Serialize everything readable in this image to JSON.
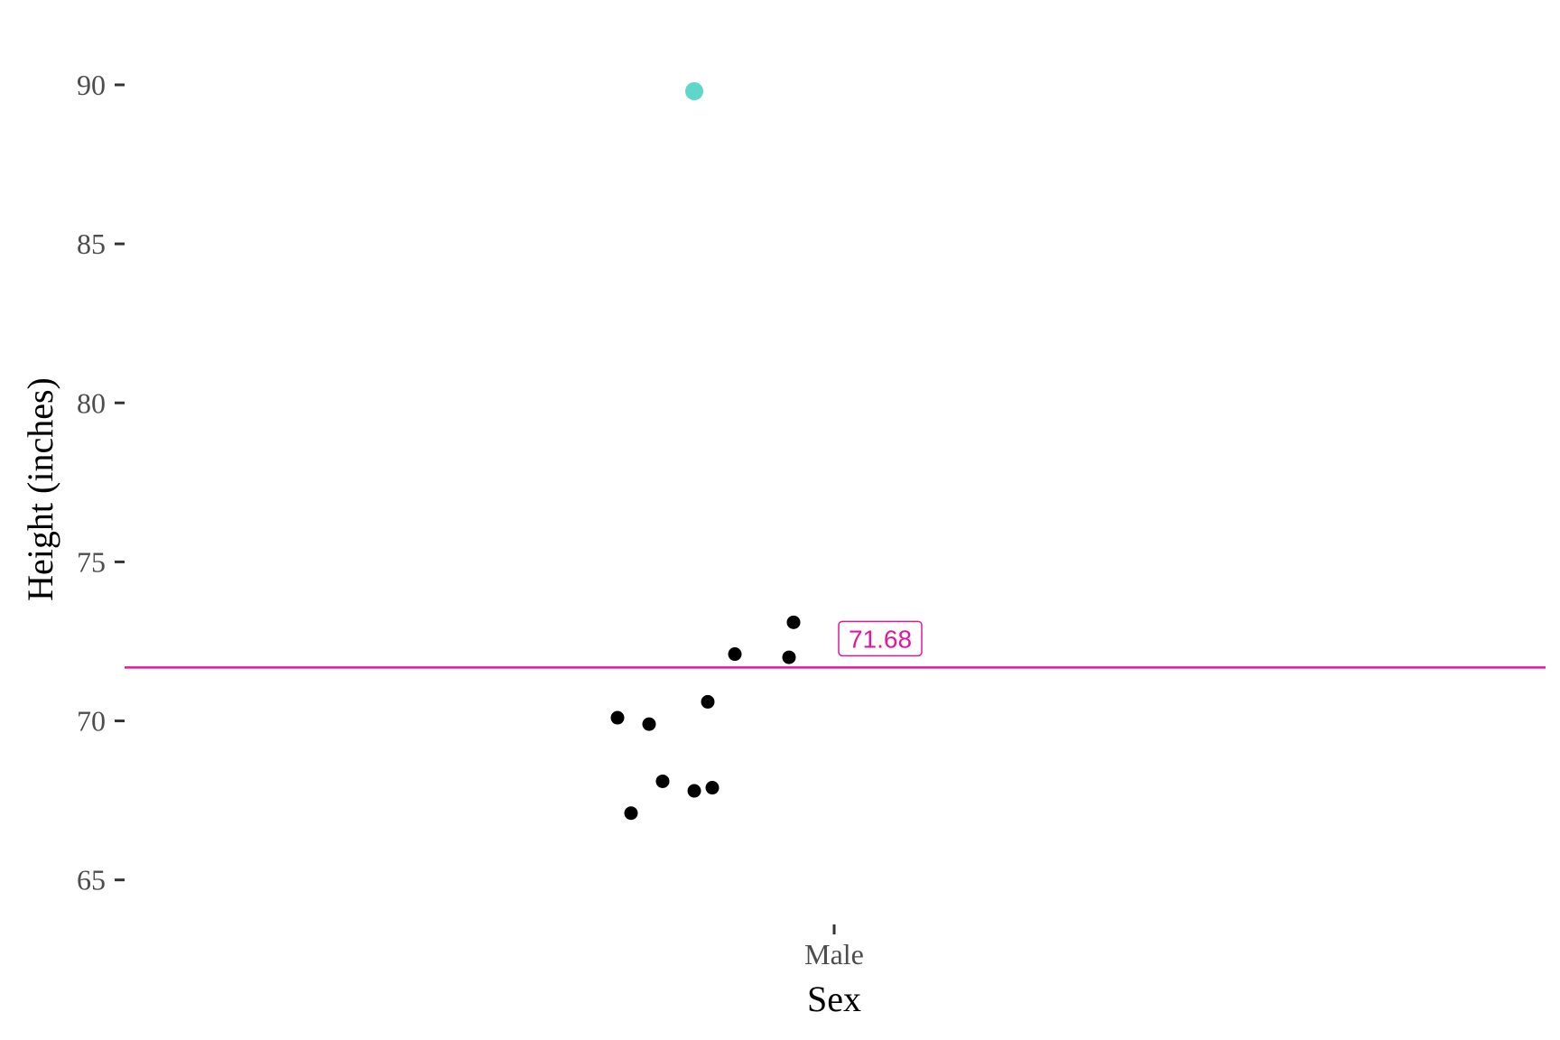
{
  "chart_data": {
    "type": "scatter",
    "xlabel": "Sex",
    "ylabel": "Height (inches)",
    "categories": [
      "Male"
    ],
    "ylim": [
      63.6,
      92.1
    ],
    "y_ticks": [
      65,
      70,
      75,
      80,
      85,
      90
    ],
    "grid": false,
    "points": [
      {
        "category": "Male",
        "jitter": -0.48,
        "y": 70.1
      },
      {
        "category": "Male",
        "jitter": -0.45,
        "y": 67.1
      },
      {
        "category": "Male",
        "jitter": -0.41,
        "y": 69.9
      },
      {
        "category": "Male",
        "jitter": -0.38,
        "y": 68.1
      },
      {
        "category": "Male",
        "jitter": -0.31,
        "y": 67.8
      },
      {
        "category": "Male",
        "jitter": -0.28,
        "y": 70.6
      },
      {
        "category": "Male",
        "jitter": -0.27,
        "y": 67.9
      },
      {
        "category": "Male",
        "jitter": -0.22,
        "y": 72.1
      },
      {
        "category": "Male",
        "jitter": -0.1,
        "y": 72.0
      },
      {
        "category": "Male",
        "jitter": -0.09,
        "y": 73.1
      }
    ],
    "highlight_point": {
      "category": "Male",
      "jitter": -0.31,
      "y": 89.8,
      "color": "#4fd1c5"
    },
    "mean_line": {
      "value": 71.68,
      "label": "71.68",
      "color": "#e0199b"
    },
    "point_color": "#000000"
  }
}
